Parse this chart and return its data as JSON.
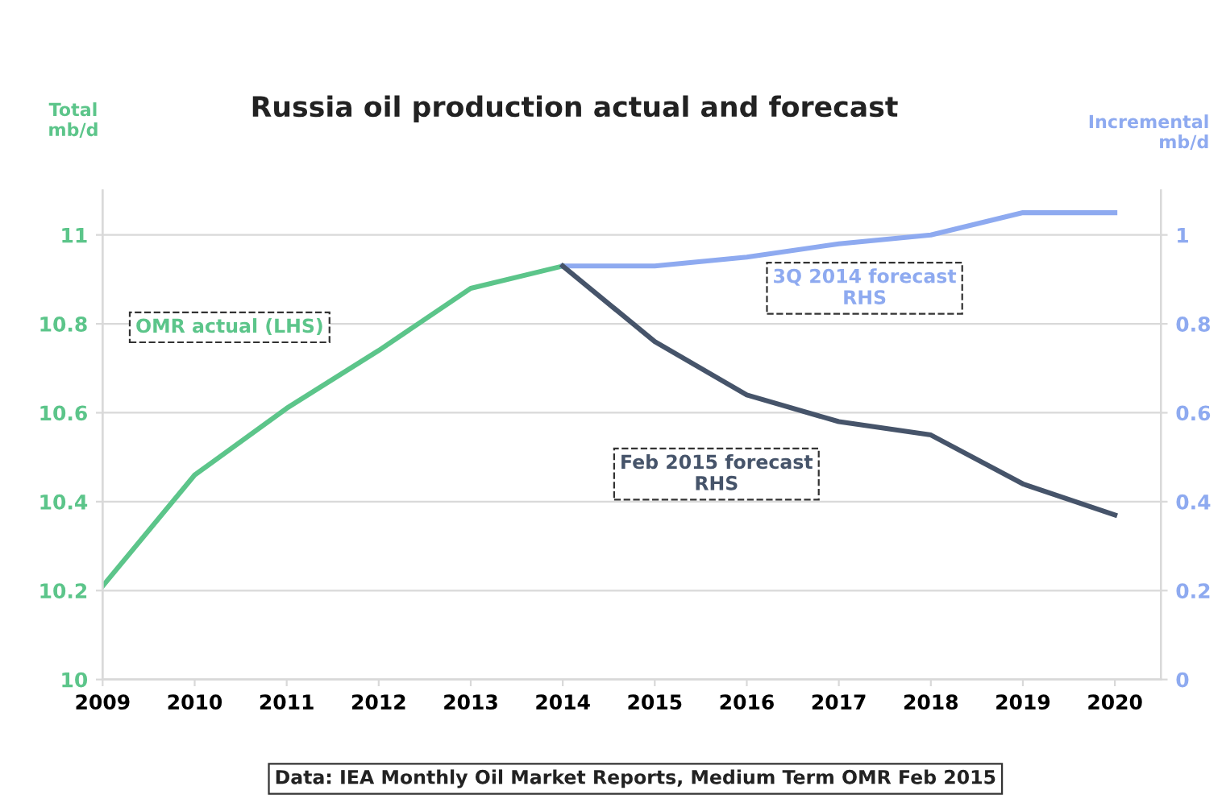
{
  "chart_data": {
    "type": "line",
    "title": "Russia oil production actual and forecast",
    "ylabel": "Total\nmb/d",
    "y2label": "Incremental\nmb/d",
    "categories": [
      "2009",
      "2010",
      "2011",
      "2012",
      "2013",
      "2014",
      "2015",
      "2016",
      "2017",
      "2018",
      "2019",
      "2020"
    ],
    "series": [
      {
        "name": "OMR actual (LHS)",
        "color": "#5cc58a",
        "values": [
          10.21,
          10.46,
          10.61,
          10.74,
          10.88,
          10.93,
          null,
          null,
          null,
          null,
          null,
          null
        ]
      },
      {
        "name": "3Q 2014 forecast\nRHS",
        "color": "#8eaaf0",
        "axis": "y2",
        "values": [
          null,
          null,
          null,
          null,
          null,
          0.93,
          0.93,
          0.95,
          0.98,
          1.0,
          1.05,
          1.05
        ]
      },
      {
        "name": "Feb 2015 forecast\nRHS",
        "color": "#46546a",
        "axis": "y2",
        "values": [
          null,
          null,
          null,
          null,
          null,
          0.93,
          0.76,
          0.64,
          0.58,
          0.55,
          0.44,
          0.37
        ]
      }
    ],
    "ylim": [
      10,
      11.1
    ],
    "yticks": [
      10,
      10.2,
      10.4,
      10.6,
      10.8,
      11
    ],
    "y2lim": [
      0,
      1.1
    ],
    "y2ticks": [
      0,
      0.2,
      0.4,
      0.6,
      0.8,
      1
    ],
    "grid": "y",
    "legend": false,
    "marker": "none",
    "line_style": "solid",
    "annotations": [
      "Data: IEA Monthly Oil Market Reports, Medium Term OMR Feb 2015"
    ]
  }
}
